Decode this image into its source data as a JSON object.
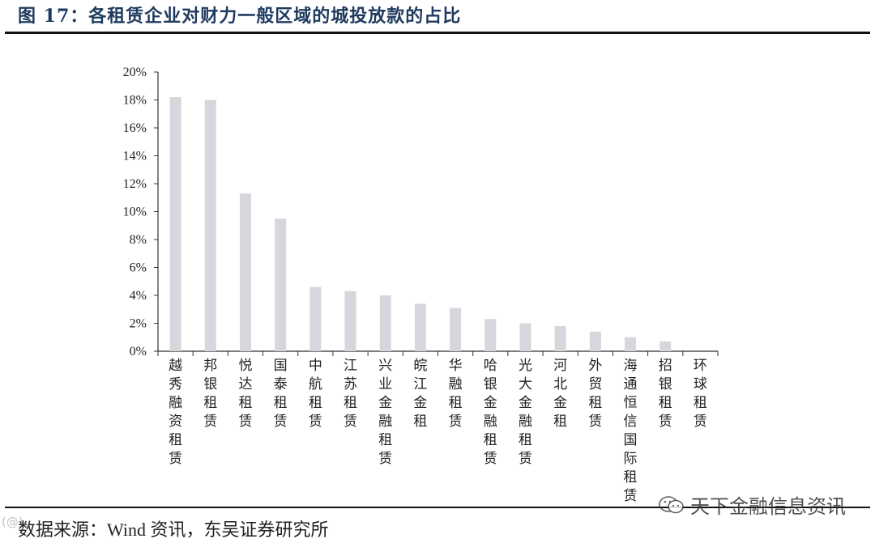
{
  "figure": {
    "title": "图 17：各租赁企业对财力一般区域的城投放款的占比",
    "source": "数据来源：Wind 资讯，东吴证券研究所",
    "watermark": "天下金融信息资讯",
    "watermark_icon": "wechat-icon",
    "corner_mark": "(@)"
  },
  "chart_data": {
    "type": "bar",
    "title": "",
    "xlabel": "",
    "ylabel": "",
    "ylim": [
      0,
      20
    ],
    "y_unit": "%",
    "y_ticks": [
      "0%",
      "2%",
      "4%",
      "6%",
      "8%",
      "10%",
      "12%",
      "14%",
      "16%",
      "18%",
      "20%"
    ],
    "grid": false,
    "legend": "none",
    "bar_color": "#d6d6dc",
    "categories": [
      "越秀融资租赁",
      "邦银租赁",
      "悦达租赁",
      "国泰租赁",
      "中航租赁",
      "江苏租赁",
      "兴业金融租赁",
      "皖江金租",
      "华融租赁",
      "哈银金融租赁",
      "光大金融租赁",
      "河北金租",
      "外贸租赁",
      "海通恒信国际租赁",
      "招银租赁",
      "环球租赁"
    ],
    "values": [
      18.2,
      18.0,
      11.3,
      9.5,
      4.6,
      4.3,
      4.0,
      3.4,
      3.1,
      2.3,
      2.0,
      1.8,
      1.4,
      1.0,
      0.7,
      0.0
    ]
  }
}
